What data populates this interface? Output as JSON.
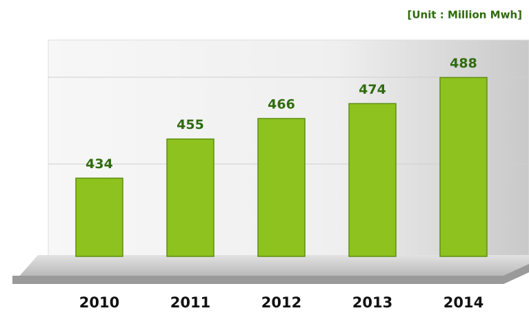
{
  "chart_data": {
    "type": "bar",
    "unit": "[Unit : Million Mwh]",
    "categories": [
      "2010",
      "2011",
      "2012",
      "2013",
      "2014"
    ],
    "values": [
      434,
      455,
      466,
      474,
      488
    ],
    "color": "#8dc21f",
    "label_color": "#2f6b0e",
    "ylim": [
      392,
      500
    ]
  }
}
